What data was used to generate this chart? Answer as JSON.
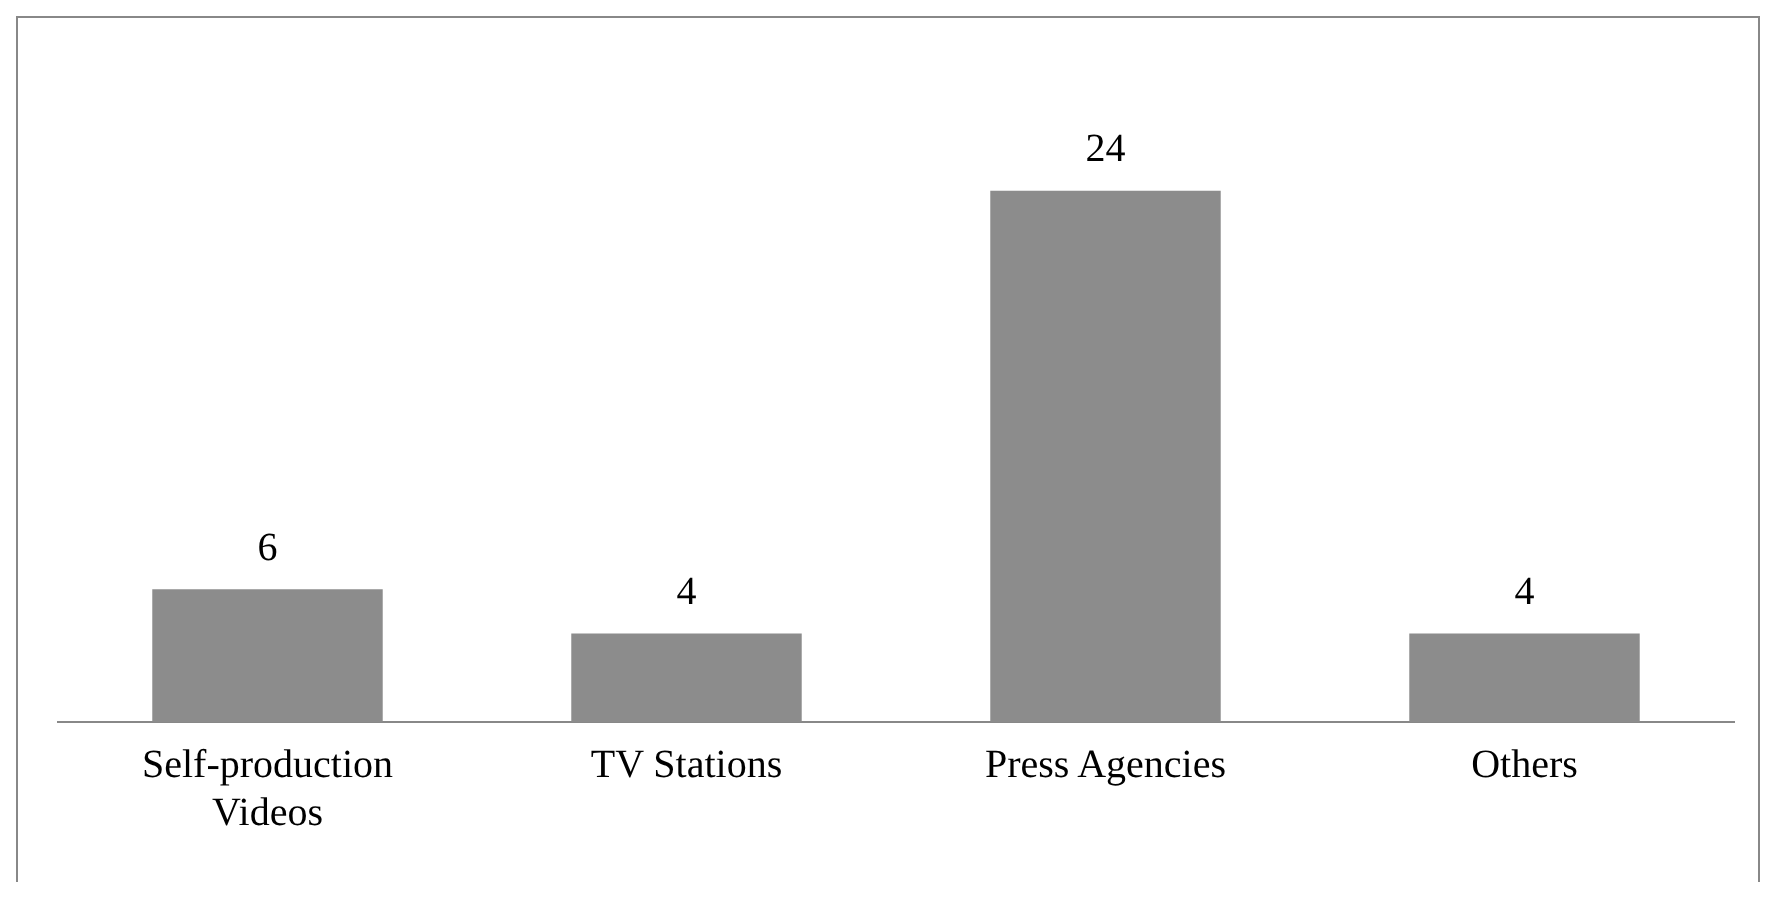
{
  "chart_data": {
    "type": "bar",
    "categories": [
      "Self-production Videos",
      "TV Stations",
      "Press Agencies",
      "Others"
    ],
    "values": [
      6,
      4,
      24,
      4
    ],
    "color": "#8c8c8c",
    "data_labels": true,
    "tick_labels": "x",
    "grid": false,
    "legend": false
  }
}
